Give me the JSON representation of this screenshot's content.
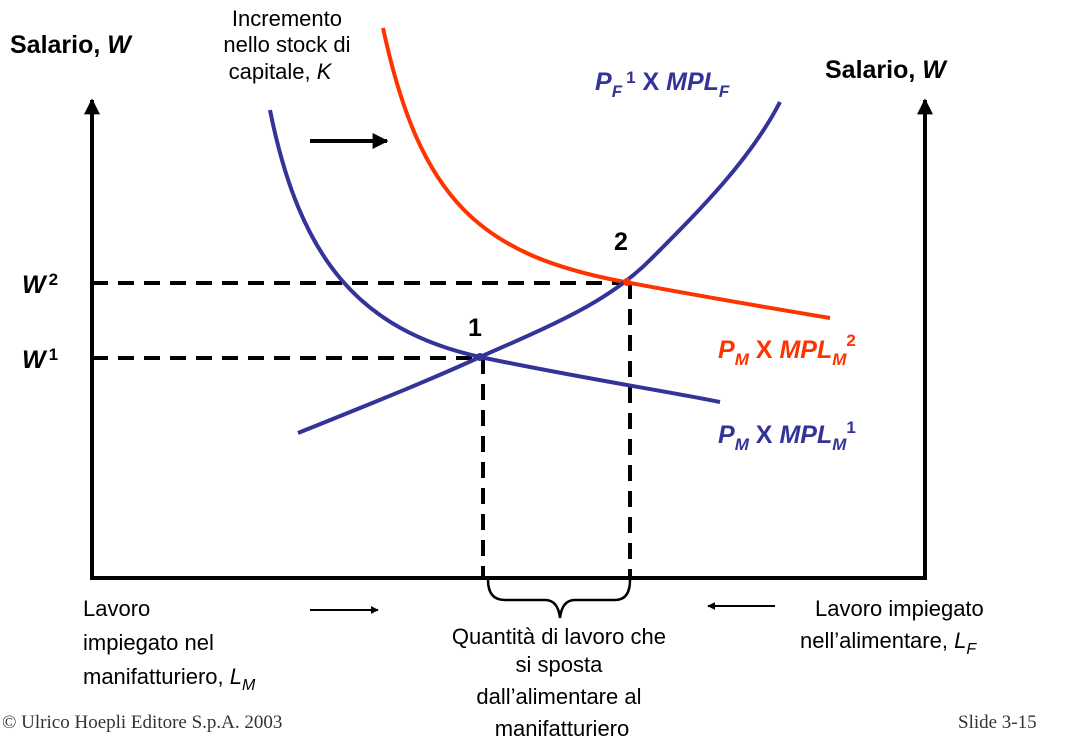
{
  "left_axis_label": [
    "Salario, ",
    "W"
  ],
  "right_axis_label": [
    "Salario, ",
    "W"
  ],
  "capital_note": [
    "Incremento",
    "nello stock di",
    "capitale, ",
    "K"
  ],
  "curve_pf": [
    "P",
    "F",
    "1",
    " X ",
    "MPL",
    "F"
  ],
  "curve_pm2": [
    "P",
    "M",
    " X ",
    "MPL",
    "M",
    "2"
  ],
  "curve_pm1": [
    "P",
    "M",
    " X ",
    "MPL",
    "M",
    "1"
  ],
  "wage_2": [
    "W",
    "2"
  ],
  "wage_1": [
    "W",
    "1"
  ],
  "point_1": "1",
  "point_2": "2",
  "labor_manufacturing": [
    "Lavoro",
    "impiegato nel",
    "manifatturiero, ",
    "L",
    "M"
  ],
  "labor_food": [
    "Lavoro impiegato",
    "nell’alimentare, ",
    "L",
    "F"
  ],
  "labor_shift": [
    "Quantità di lavoro che",
    "si sposta",
    "dall’alimentare al",
    "manifatturiero"
  ],
  "footer": {
    "copyright": "© Ulrico Hoepli Editore S.p.A. 2003",
    "slide": "Slide 3-15"
  }
}
